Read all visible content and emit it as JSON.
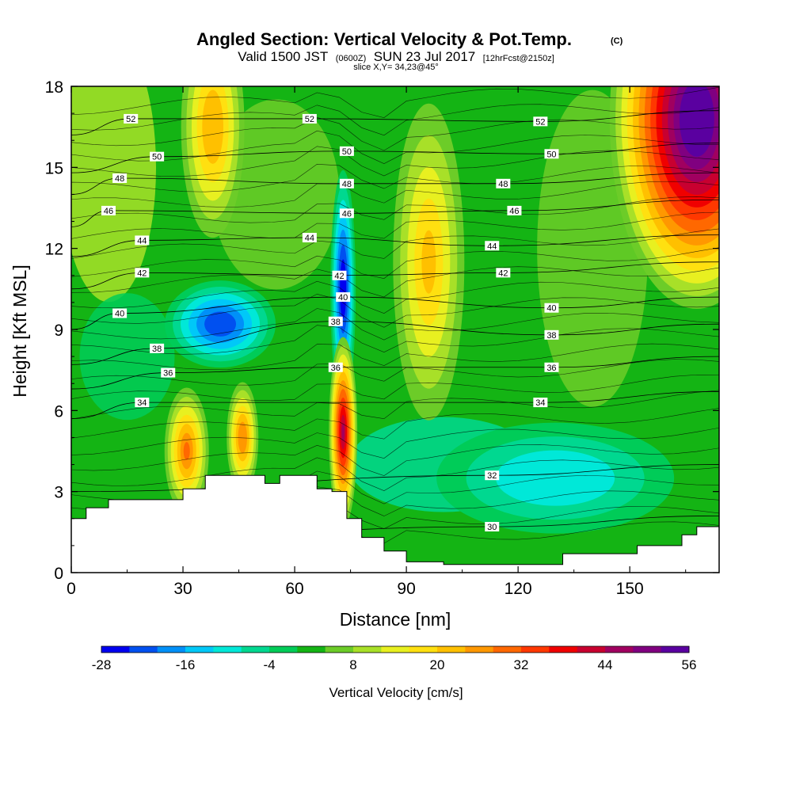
{
  "header": {
    "title": "Angled Section: Vertical Velocity & Pot.Temp.",
    "copyright": "(C)",
    "valid_prefix": "Valid 1500 JST",
    "valid_zulu": "(0600Z)",
    "valid_date": "SUN 23 Jul 2017",
    "forecast": "[12hrFcst@2150z]",
    "slice": "slice X,Y= 34,23@45°"
  },
  "chart_data": {
    "type": "heatmap",
    "xlabel": "Distance [nm]",
    "ylabel": "Height [Kft MSL]",
    "xlim": [
      0,
      174
    ],
    "ylim": [
      0,
      18
    ],
    "x_ticks": [
      "0",
      "30",
      "60",
      "90",
      "120",
      "150"
    ],
    "y_ticks": [
      "0",
      "3",
      "6",
      "9",
      "12",
      "15",
      "18"
    ],
    "colorbar": {
      "label": "Vertical Velocity [cm/s]",
      "min": -28,
      "max": 56,
      "step": 4,
      "tick_labels": [
        "-28",
        "-16",
        "-4",
        "8",
        "20",
        "32",
        "44",
        "56"
      ],
      "colors": [
        "#0000f0",
        "#0050f0",
        "#0090f8",
        "#00c8f8",
        "#00e8d8",
        "#00d890",
        "#00cc58",
        "#14b414",
        "#6ccc28",
        "#a8e028",
        "#e8f020",
        "#ffe010",
        "#ffc000",
        "#ff9800",
        "#ff6800",
        "#ff3800",
        "#f00000",
        "#c80030",
        "#a00060",
        "#800080",
        "#5a00a0"
      ]
    },
    "terrain_kft": [
      [
        0,
        2.0
      ],
      [
        4,
        2.4
      ],
      [
        10,
        2.7
      ],
      [
        24,
        2.7
      ],
      [
        30,
        3.1
      ],
      [
        36,
        3.6
      ],
      [
        48,
        3.6
      ],
      [
        52,
        3.3
      ],
      [
        56,
        3.6
      ],
      [
        62,
        3.6
      ],
      [
        66,
        3.1
      ],
      [
        70,
        3.0
      ],
      [
        74,
        2.0
      ],
      [
        78,
        1.3
      ],
      [
        84,
        0.8
      ],
      [
        90,
        0.4
      ],
      [
        100,
        0.3
      ],
      [
        128,
        0.3
      ],
      [
        132,
        0.7
      ],
      [
        142,
        0.7
      ],
      [
        152,
        1.0
      ],
      [
        164,
        1.4
      ],
      [
        168,
        1.7
      ],
      [
        174,
        1.7
      ]
    ],
    "vertical_velocity_features": [
      {
        "x_nm": 40,
        "z_kft": 9.2,
        "w_cms": -22
      },
      {
        "x_nm": 73,
        "z_kft": 10.5,
        "w_cms": -26
      },
      {
        "x_nm": 73,
        "z_kft": 5.2,
        "w_cms": 40
      },
      {
        "x_nm": 31,
        "z_kft": 4.5,
        "w_cms": 24
      },
      {
        "x_nm": 46,
        "z_kft": 5.0,
        "w_cms": 22
      },
      {
        "x_nm": 96,
        "z_kft": 11.5,
        "w_cms": 16
      },
      {
        "x_nm": 168,
        "z_kft": 16.8,
        "w_cms": 56
      },
      {
        "x_nm": 38,
        "z_kft": 16.5,
        "w_cms": 18
      },
      {
        "x_nm": 130,
        "z_kft": 3.5,
        "w_cms": -10
      }
    ],
    "isentrope_labels_C": [
      {
        "value": "52",
        "x_nm": 16,
        "z_kft": 16.8
      },
      {
        "value": "50",
        "x_nm": 23,
        "z_kft": 15.4
      },
      {
        "value": "48",
        "x_nm": 13,
        "z_kft": 14.6
      },
      {
        "value": "46",
        "x_nm": 10,
        "z_kft": 13.4
      },
      {
        "value": "44",
        "x_nm": 19,
        "z_kft": 12.3
      },
      {
        "value": "42",
        "x_nm": 19,
        "z_kft": 11.1
      },
      {
        "value": "40",
        "x_nm": 13,
        "z_kft": 9.6
      },
      {
        "value": "38",
        "x_nm": 23,
        "z_kft": 8.3
      },
      {
        "value": "36",
        "x_nm": 26,
        "z_kft": 7.4
      },
      {
        "value": "34",
        "x_nm": 19,
        "z_kft": 6.3
      },
      {
        "value": "52",
        "x_nm": 64,
        "z_kft": 16.8
      },
      {
        "value": "50",
        "x_nm": 74,
        "z_kft": 15.6
      },
      {
        "value": "48",
        "x_nm": 74,
        "z_kft": 14.4
      },
      {
        "value": "46",
        "x_nm": 74,
        "z_kft": 13.3
      },
      {
        "value": "44",
        "x_nm": 64,
        "z_kft": 12.4
      },
      {
        "value": "42",
        "x_nm": 72,
        "z_kft": 11.0
      },
      {
        "value": "40",
        "x_nm": 73,
        "z_kft": 10.2
      },
      {
        "value": "38",
        "x_nm": 71,
        "z_kft": 9.3
      },
      {
        "value": "36",
        "x_nm": 71,
        "z_kft": 7.6
      },
      {
        "value": "52",
        "x_nm": 126,
        "z_kft": 16.7
      },
      {
        "value": "50",
        "x_nm": 129,
        "z_kft": 15.5
      },
      {
        "value": "48",
        "x_nm": 116,
        "z_kft": 14.4
      },
      {
        "value": "46",
        "x_nm": 119,
        "z_kft": 13.4
      },
      {
        "value": "44",
        "x_nm": 113,
        "z_kft": 12.1
      },
      {
        "value": "42",
        "x_nm": 116,
        "z_kft": 11.1
      },
      {
        "value": "40",
        "x_nm": 129,
        "z_kft": 9.8
      },
      {
        "value": "38",
        "x_nm": 129,
        "z_kft": 8.8
      },
      {
        "value": "36",
        "x_nm": 129,
        "z_kft": 7.6
      },
      {
        "value": "34",
        "x_nm": 126,
        "z_kft": 6.3
      },
      {
        "value": "32",
        "x_nm": 113,
        "z_kft": 3.6
      },
      {
        "value": "30",
        "x_nm": 113,
        "z_kft": 1.7
      }
    ]
  }
}
